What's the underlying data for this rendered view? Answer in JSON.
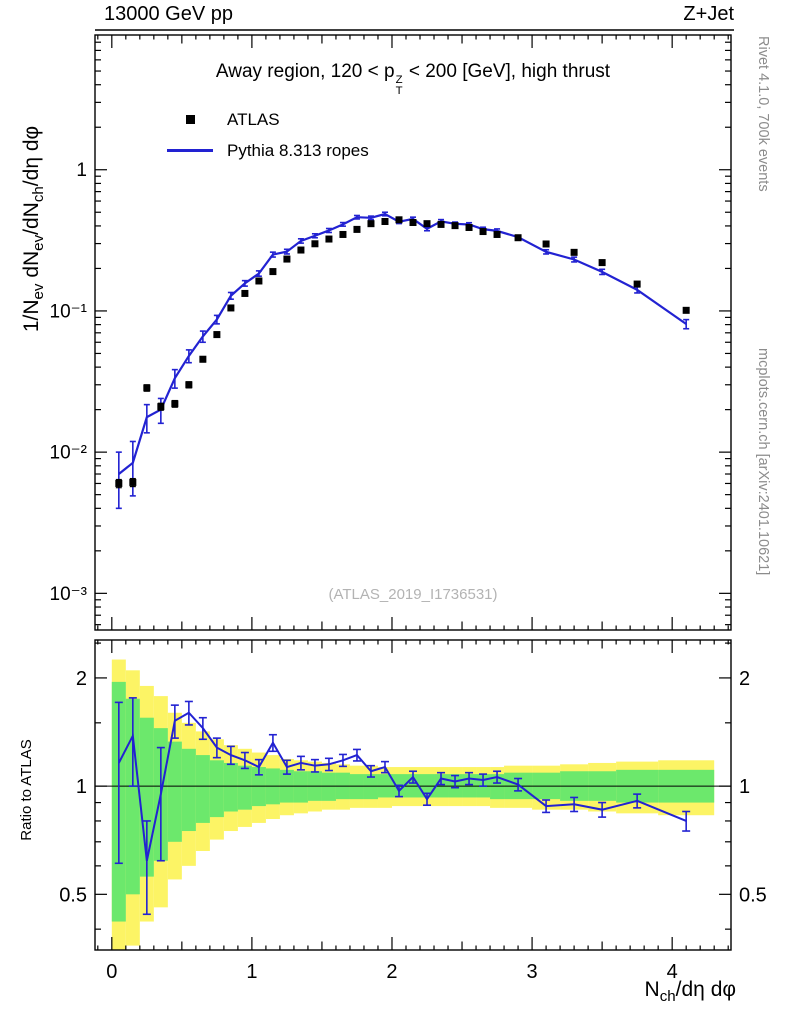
{
  "header": {
    "left": "13000 GeV pp",
    "right": "Z+Jet"
  },
  "side": {
    "top": "Rivet 4.1.0, 700k events",
    "bottom": "mcplots.cern.ch [arXiv:2401.10621]"
  },
  "main": {
    "title_segments": [
      {
        "t": "Away region, 120 < "
      },
      {
        "t": "p",
        "stack": [
          "Z",
          "T"
        ]
      },
      {
        "t": " < 200 [GeV], high thrust"
      }
    ],
    "watermark": "(ATLAS_2019_I1736531)",
    "ylabel_segments": [
      {
        "t": "1/N"
      },
      {
        "s": "ev"
      },
      {
        "t": " dN"
      },
      {
        "s": "ev"
      },
      {
        "t": "/dN"
      },
      {
        "s": "ch"
      },
      {
        "t": "/dη dφ"
      }
    ]
  },
  "ratio_panel": {
    "ylabel": "Ratio to ATLAS"
  },
  "xaxis_label_segments": [
    {
      "t": "N"
    },
    {
      "s": "ch"
    },
    {
      "t": "/dη dφ"
    }
  ],
  "legend": {
    "items": [
      {
        "label": "ATLAS",
        "marker": "square",
        "color": "#000000"
      },
      {
        "label": "Pythia 8.313 ropes",
        "marker": "line",
        "color": "#2222d2"
      }
    ]
  },
  "colors": {
    "curve": "#2222d2",
    "marker": "#000000",
    "band_yellow": "#fcf465",
    "band_green": "#6ce86c",
    "frame": "#000000",
    "watermark": "#b3b3b3",
    "side_text": "#8c8c8c"
  },
  "chart_data": {
    "type": "line",
    "title": "Away region, 120 < pT(Z) < 200 [GeV], high thrust",
    "xlabel": "Nch/deta dphi",
    "ylabel": "1/Nev dNev/dNch/deta dphi",
    "legend_position": "top-left",
    "grid": false,
    "x_axis": {
      "min": -0.12,
      "max": 4.42,
      "ticks": [
        0,
        1,
        2,
        3,
        4
      ]
    },
    "main_axis": {
      "scale": "log",
      "ymin": 0.00055,
      "ymax": 9,
      "ticks": [
        {
          "v": 1,
          "label": "1"
        },
        {
          "v": 0.1,
          "label": "10⁻¹"
        },
        {
          "v": 0.01,
          "label": "10⁻²"
        },
        {
          "v": 0.001,
          "label": "10⁻³"
        }
      ]
    },
    "ratio_axis": {
      "scale": "log",
      "ymin": 0.35,
      "ymax": 2.55,
      "ticks": [
        {
          "v": 2,
          "label": "2"
        },
        {
          "v": 1,
          "label": "1"
        },
        {
          "v": 0.5,
          "label": "0.5"
        }
      ],
      "minor_ticks": [
        0.4,
        0.6,
        0.7,
        0.8,
        0.9,
        1.5,
        2.5
      ]
    },
    "x": [
      0.05,
      0.15,
      0.25,
      0.35,
      0.45,
      0.55,
      0.65,
      0.75,
      0.85,
      0.95,
      1.05,
      1.15,
      1.25,
      1.35,
      1.45,
      1.55,
      1.65,
      1.75,
      1.85,
      1.95,
      2.05,
      2.15,
      2.25,
      2.35,
      2.45,
      2.55,
      2.65,
      2.75,
      2.9,
      3.1,
      3.3,
      3.5,
      3.75,
      4.1
    ],
    "bins": {
      "lo": [
        0,
        0.1,
        0.2,
        0.3,
        0.4,
        0.5,
        0.6,
        0.7,
        0.8,
        0.9,
        1.0,
        1.1,
        1.2,
        1.3,
        1.4,
        1.5,
        1.6,
        1.7,
        1.8,
        1.9,
        2.0,
        2.1,
        2.2,
        2.3,
        2.4,
        2.5,
        2.6,
        2.7,
        2.8,
        3.0,
        3.2,
        3.4,
        3.6,
        3.9
      ],
      "hi": [
        0.1,
        0.2,
        0.3,
        0.4,
        0.5,
        0.6,
        0.7,
        0.8,
        0.9,
        1.0,
        1.1,
        1.2,
        1.3,
        1.4,
        1.5,
        1.6,
        1.7,
        1.8,
        1.9,
        2.0,
        2.1,
        2.2,
        2.3,
        2.4,
        2.5,
        2.6,
        2.7,
        2.8,
        3.0,
        3.2,
        3.4,
        3.6,
        3.9,
        4.3
      ]
    },
    "series": [
      {
        "name": "ATLAS",
        "type": "scatter",
        "marker": "square",
        "color": "#000000",
        "y": [
          0.006,
          0.0061,
          0.0285,
          0.021,
          0.022,
          0.03,
          0.0455,
          0.068,
          0.105,
          0.133,
          0.163,
          0.19,
          0.233,
          0.27,
          0.299,
          0.323,
          0.348,
          0.378,
          0.415,
          0.43,
          0.442,
          0.423,
          0.415,
          0.41,
          0.402,
          0.39,
          0.365,
          0.348,
          0.33,
          0.298,
          0.26,
          0.22,
          0.155,
          0.101
        ],
        "yerr": [
          0.0004,
          0.0004,
          0.0015,
          0.0012,
          0.0012,
          0.0015,
          0.002,
          0.003,
          0.004,
          0.005,
          0.005,
          0.006,
          0.007,
          0.008,
          0.008,
          0.009,
          0.009,
          0.01,
          0.01,
          0.011,
          0.011,
          0.011,
          0.01,
          0.01,
          0.01,
          0.01,
          0.009,
          0.009,
          0.009,
          0.008,
          0.007,
          0.006,
          0.005,
          0.004
        ]
      },
      {
        "name": "Pythia 8.313 ropes",
        "type": "line",
        "color": "#2222d2",
        "y": [
          0.007,
          0.0084,
          0.0177,
          0.02,
          0.0334,
          0.048,
          0.066,
          0.087,
          0.1281,
          0.1569,
          0.1842,
          0.2508,
          0.2633,
          0.3132,
          0.3409,
          0.3715,
          0.4106,
          0.4612,
          0.4565,
          0.4859,
          0.4287,
          0.4484,
          0.3818,
          0.4305,
          0.4141,
          0.4095,
          0.3796,
          0.3689,
          0.3333,
          0.2622,
          0.2314,
          0.1892,
          0.1411,
          0.0808
        ],
        "yerr": [
          0.003,
          0.0035,
          0.004,
          0.004,
          0.005,
          0.005,
          0.006,
          0.006,
          0.007,
          0.007,
          0.008,
          0.01,
          0.01,
          0.011,
          0.011,
          0.012,
          0.012,
          0.013,
          0.013,
          0.014,
          0.013,
          0.013,
          0.012,
          0.013,
          0.012,
          0.012,
          0.012,
          0.012,
          0.01,
          0.009,
          0.009,
          0.008,
          0.007,
          0.006
        ]
      }
    ],
    "ratio": {
      "name": "Pythia / ATLAS",
      "y": [
        1.16,
        1.38,
        0.62,
        0.95,
        1.52,
        1.6,
        1.45,
        1.28,
        1.22,
        1.18,
        1.13,
        1.32,
        1.13,
        1.16,
        1.14,
        1.15,
        1.18,
        1.22,
        1.1,
        1.13,
        0.97,
        1.06,
        0.92,
        1.05,
        1.03,
        1.05,
        1.04,
        1.06,
        1.01,
        0.88,
        0.89,
        0.86,
        0.91,
        0.8
      ],
      "yerr": [
        0.55,
        0.38,
        0.18,
        0.33,
        0.16,
        0.12,
        0.1,
        0.08,
        0.07,
        0.06,
        0.055,
        0.07,
        0.05,
        0.05,
        0.045,
        0.045,
        0.045,
        0.045,
        0.04,
        0.04,
        0.035,
        0.04,
        0.035,
        0.04,
        0.04,
        0.04,
        0.04,
        0.04,
        0.04,
        0.035,
        0.04,
        0.04,
        0.04,
        0.05
      ],
      "band_yellow": [
        [
          0.3,
          2.25
        ],
        [
          0.36,
          2.1
        ],
        [
          0.42,
          1.9
        ],
        [
          0.46,
          1.78
        ],
        [
          0.55,
          1.6
        ],
        [
          0.6,
          1.5
        ],
        [
          0.66,
          1.42
        ],
        [
          0.71,
          1.35
        ],
        [
          0.75,
          1.3
        ],
        [
          0.77,
          1.27
        ],
        [
          0.79,
          1.24
        ],
        [
          0.81,
          1.22
        ],
        [
          0.83,
          1.19
        ],
        [
          0.84,
          1.18
        ],
        [
          0.85,
          1.17
        ],
        [
          0.86,
          1.16
        ],
        [
          0.86,
          1.15
        ],
        [
          0.87,
          1.14
        ],
        [
          0.87,
          1.14
        ],
        [
          0.87,
          1.13
        ],
        [
          0.88,
          1.13
        ],
        [
          0.88,
          1.13
        ],
        [
          0.88,
          1.13
        ],
        [
          0.88,
          1.13
        ],
        [
          0.88,
          1.13
        ],
        [
          0.88,
          1.13
        ],
        [
          0.88,
          1.13
        ],
        [
          0.87,
          1.13
        ],
        [
          0.87,
          1.14
        ],
        [
          0.86,
          1.14
        ],
        [
          0.86,
          1.15
        ],
        [
          0.85,
          1.16
        ],
        [
          0.84,
          1.17
        ],
        [
          0.83,
          1.18
        ]
      ],
      "band_green": [
        [
          0.42,
          1.95
        ],
        [
          0.5,
          1.75
        ],
        [
          0.56,
          1.55
        ],
        [
          0.62,
          1.45
        ],
        [
          0.7,
          1.33
        ],
        [
          0.75,
          1.27
        ],
        [
          0.79,
          1.22
        ],
        [
          0.82,
          1.18
        ],
        [
          0.85,
          1.16
        ],
        [
          0.86,
          1.14
        ],
        [
          0.88,
          1.13
        ],
        [
          0.89,
          1.12
        ],
        [
          0.9,
          1.11
        ],
        [
          0.9,
          1.1
        ],
        [
          0.91,
          1.1
        ],
        [
          0.91,
          1.09
        ],
        [
          0.92,
          1.09
        ],
        [
          0.92,
          1.08
        ],
        [
          0.92,
          1.08
        ],
        [
          0.93,
          1.08
        ],
        [
          0.93,
          1.08
        ],
        [
          0.93,
          1.08
        ],
        [
          0.93,
          1.08
        ],
        [
          0.93,
          1.08
        ],
        [
          0.93,
          1.08
        ],
        [
          0.93,
          1.08
        ],
        [
          0.93,
          1.08
        ],
        [
          0.92,
          1.08
        ],
        [
          0.92,
          1.09
        ],
        [
          0.92,
          1.09
        ],
        [
          0.91,
          1.1
        ],
        [
          0.91,
          1.1
        ],
        [
          0.9,
          1.11
        ],
        [
          0.9,
          1.11
        ]
      ]
    }
  }
}
